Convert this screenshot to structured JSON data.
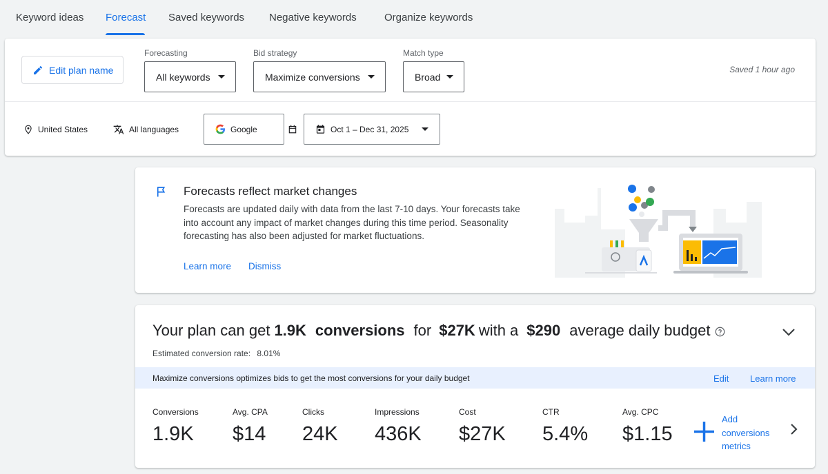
{
  "tabs": [
    {
      "label": "Keyword ideas"
    },
    {
      "label": "Forecast",
      "active": true
    },
    {
      "label": "Saved keywords"
    },
    {
      "label": "Negative keywords"
    },
    {
      "label": "Organize keywords"
    }
  ],
  "toolbar": {
    "edit_plan_label": "Edit plan name",
    "forecasting": {
      "label": "Forecasting",
      "value": "All keywords"
    },
    "bid_strategy": {
      "label": "Bid strategy",
      "value": "Maximize conversions"
    },
    "match_type": {
      "label": "Match type",
      "value": "Broad"
    },
    "saved_status": "Saved 1 hour ago",
    "location": "United States",
    "language": "All languages",
    "network": "Google",
    "date_range": "Oct 1 – Dec 31, 2025"
  },
  "info_card": {
    "title": "Forecasts reflect market changes",
    "body": "Forecasts are updated daily with data from the last 7-10 days. Your forecasts take into account any impact of market changes during this time period. Seasonality forecasting has also been adjusted for market fluctuations.",
    "learn_more": "Learn more",
    "dismiss": "Dismiss"
  },
  "forecast": {
    "headline": {
      "prefix": "Your plan can get",
      "conversions_value": "1.9K",
      "conversions_word": "conversions",
      "for_word": "for",
      "cost_value": "$27K",
      "with_a": "with a",
      "budget_value": "$290",
      "suffix": "average daily budget"
    },
    "conversion_rate_label": "Estimated conversion rate:",
    "conversion_rate_value": "8.01%",
    "banner_text": "Maximize conversions optimizes bids to get the most conversions for your daily budget",
    "banner_edit": "Edit",
    "banner_learn_more": "Learn more",
    "metrics": [
      {
        "label": "Conversions",
        "value": "1.9K"
      },
      {
        "label": "Avg. CPA",
        "value": "$14"
      },
      {
        "label": "Clicks",
        "value": "24K"
      },
      {
        "label": "Impressions",
        "value": "436K"
      },
      {
        "label": "Cost",
        "value": "$27K"
      },
      {
        "label": "CTR",
        "value": "5.4%"
      },
      {
        "label": "Avg. CPC",
        "value": "$1.15"
      }
    ],
    "add_metrics_label": "Add conversions metrics"
  },
  "colors": {
    "accent": "#1a73e8",
    "banner_bg": "#e8f0fe",
    "page_bg": "#f1f3f4"
  }
}
